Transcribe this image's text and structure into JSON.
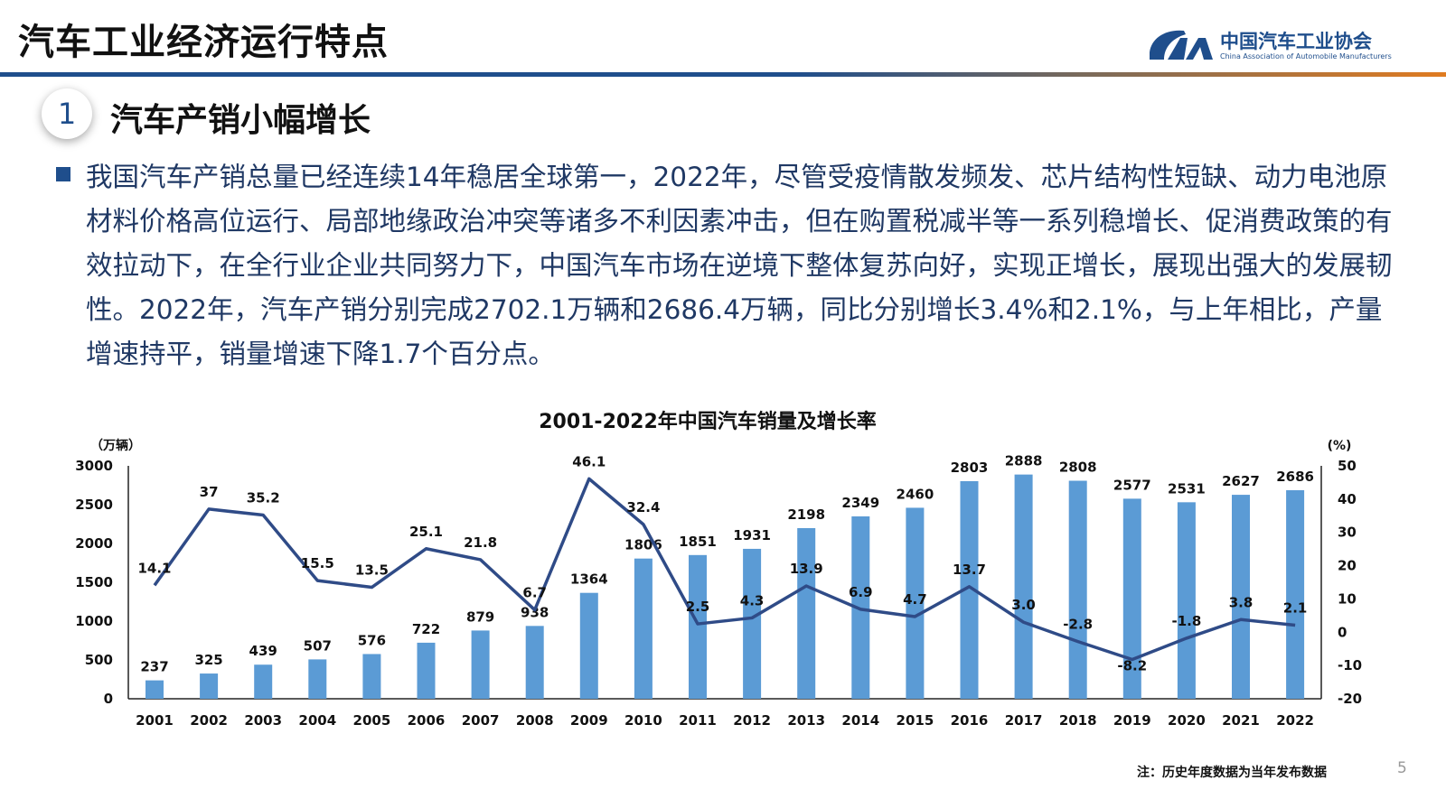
{
  "header": {
    "title": "汽车工业经济运行特点",
    "logo_cn": "中国汽车工业协会",
    "logo_en": "China Association of Automobile Manufacturers"
  },
  "section": {
    "number": "1",
    "title": "汽车产销小幅增长"
  },
  "paragraph": "我国汽车产销总量已经连续14年稳居全球第一，2022年，尽管受疫情散发频发、芯片结构性短缺、动力电池原材料价格高位运行、局部地缘政治冲突等诸多不利因素冲击，但在购置税减半等一系列稳增长、促消费政策的有效拉动下，在全行业企业共同努力下，中国汽车市场在逆境下整体复苏向好，实现正增长，展现出强大的发展韧性。2022年，汽车产销分别完成2702.1万辆和2686.4万辆，同比分别增长3.4%和2.1%，与上年相比，产量增速持平，销量增速下降1.7个百分点。",
  "chart_data": {
    "type": "bar+line",
    "title": "2001-2022年中国汽车销量及增长率",
    "ylabel_left": "（万辆）",
    "ylabel_right": "(%)",
    "ylim_left": [
      0,
      3000
    ],
    "yticks_left": [
      0,
      500,
      1000,
      1500,
      2000,
      2500,
      3000
    ],
    "ylim_right": [
      -20,
      50
    ],
    "yticks_right": [
      -20,
      -10,
      0,
      10,
      20,
      30,
      40,
      50
    ],
    "categories": [
      "2001",
      "2002",
      "2003",
      "2004",
      "2005",
      "2006",
      "2007",
      "2008",
      "2009",
      "2010",
      "2011",
      "2012",
      "2013",
      "2014",
      "2015",
      "2016",
      "2017",
      "2018",
      "2019",
      "2020",
      "2021",
      "2022"
    ],
    "series": [
      {
        "kind": "bar",
        "axis": "left",
        "color": "#5B9BD5",
        "values": [
          237,
          325,
          439,
          507,
          576,
          722,
          879,
          938,
          1364,
          1806,
          1851,
          1931,
          2198,
          2349,
          2460,
          2803,
          2888,
          2808,
          2577,
          2531,
          2627,
          2686
        ]
      },
      {
        "kind": "line",
        "axis": "right",
        "color": "#2F4B87",
        "values": [
          14.1,
          37,
          35.2,
          15.5,
          13.5,
          25.1,
          21.8,
          6.7,
          46.1,
          32.4,
          2.5,
          4.3,
          13.9,
          6.9,
          4.7,
          13.7,
          3.0,
          -2.8,
          -8.2,
          -1.8,
          3.8,
          2.1
        ]
      }
    ],
    "grid": false,
    "legend": "none"
  },
  "footer": {
    "note": "注：历史年度数据为当年发布数据",
    "page": "5"
  }
}
